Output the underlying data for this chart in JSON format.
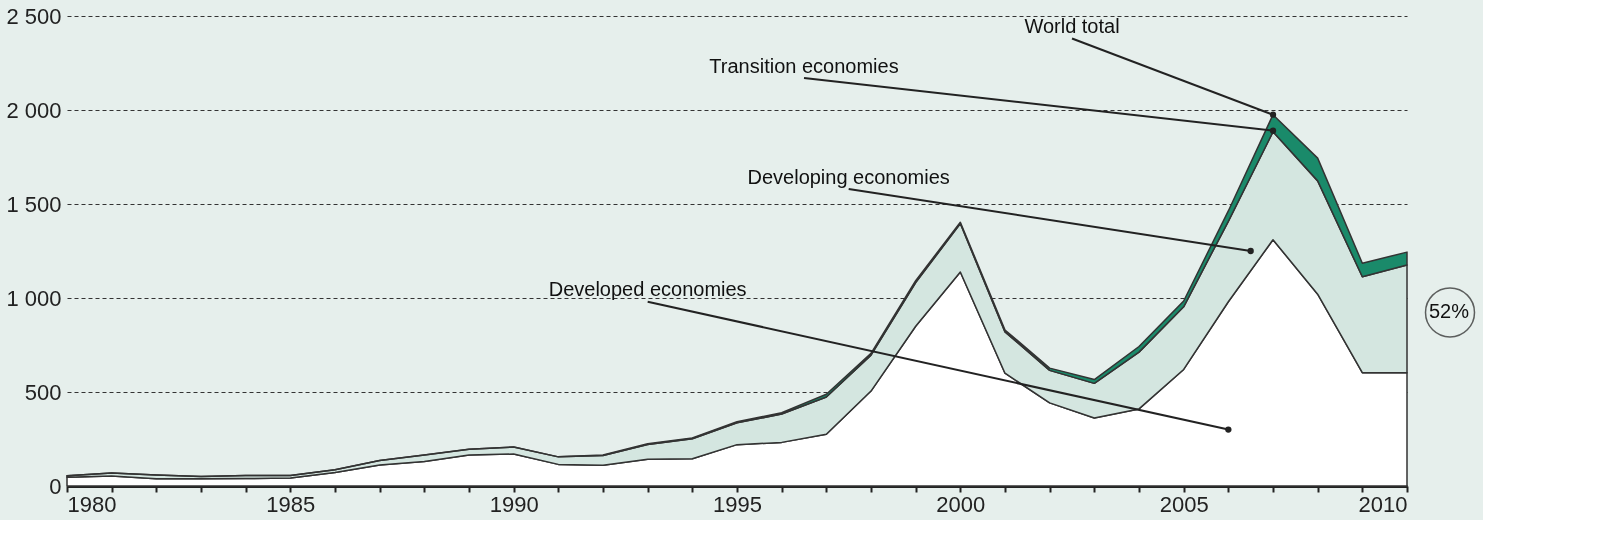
{
  "chart_data": {
    "type": "area",
    "stacked": true,
    "x": [
      1980,
      1981,
      1982,
      1983,
      1984,
      1985,
      1986,
      1987,
      1988,
      1989,
      1990,
      1991,
      1992,
      1993,
      1994,
      1995,
      1996,
      1997,
      1998,
      1999,
      2000,
      2001,
      2002,
      2003,
      2004,
      2005,
      2006,
      2007,
      2008,
      2009,
      2010
    ],
    "series": [
      {
        "color": "#ffffff",
        "values": [
          47,
          53,
          38,
          38,
          40,
          42,
          72,
          112,
          130,
          165,
          170,
          115,
          110,
          142,
          145,
          220,
          232,
          275,
          505,
          850,
          1138,
          600,
          442,
          362,
          410,
          620,
          980,
          1310,
          1020,
          603,
          602
        ]
      },
      {
        "color": "#d4e6e0",
        "values": [
          7,
          16,
          20,
          12,
          16,
          14,
          15,
          24,
          35,
          30,
          37,
          40,
          52,
          79,
          106,
          116,
          151,
          198,
          191,
          232,
          258,
          220,
          173,
          184,
          302,
          333,
          428,
          574,
          603,
          510,
          574
        ]
      },
      {
        "color": "#1a8a6a",
        "values": [
          0,
          0,
          0,
          0,
          0,
          0,
          0,
          0,
          0,
          0,
          0,
          0,
          3,
          4,
          5,
          6,
          7,
          15,
          10,
          10,
          7,
          10,
          12,
          20,
          30,
          31,
          55,
          91,
          121,
          72,
          68
        ]
      }
    ],
    "xlim": [
      1980,
      2010
    ],
    "ylim": [
      0,
      2500
    ],
    "xticks": [
      1980,
      {
        "value": 1981,
        "label": null
      },
      {
        "value": 1982,
        "label": null
      },
      {
        "value": 1983,
        "label": null
      },
      {
        "value": 1984,
        "label": null
      },
      1985,
      {
        "value": 1986,
        "label": null
      },
      {
        "value": 1987,
        "label": null
      },
      {
        "value": 1988,
        "label": null
      },
      {
        "value": 1989,
        "label": null
      },
      1990,
      {
        "value": 1991,
        "label": null
      },
      {
        "value": 1992,
        "label": null
      },
      {
        "value": 1993,
        "label": null
      },
      {
        "value": 1994,
        "label": null
      },
      1995,
      {
        "value": 1996,
        "label": null
      },
      {
        "value": 1997,
        "label": null
      },
      {
        "value": 1998,
        "label": null
      },
      {
        "value": 1999,
        "label": null
      },
      2000,
      {
        "value": 2001,
        "label": null
      },
      {
        "value": 2002,
        "label": null
      },
      {
        "value": 2003,
        "label": null
      },
      {
        "value": 2004,
        "label": null
      },
      2005,
      {
        "value": 2006,
        "label": null
      },
      {
        "value": 2007,
        "label": null
      },
      {
        "value": 2008,
        "label": null
      },
      {
        "value": 2009,
        "label": null
      },
      2010
    ],
    "yticks": [
      0,
      {
        "value": 500,
        "label": "500"
      },
      {
        "value": 1000,
        "label": "1 000"
      },
      {
        "value": 1500,
        "label": "1 500"
      },
      {
        "value": 2000,
        "label": "2 000"
      },
      {
        "value": 2500,
        "label": "2 500"
      }
    ],
    "grid": "y",
    "annotations": [
      {
        "text": "World total",
        "x": 2007,
        "y": 1975
      },
      {
        "text": "Transition economies",
        "x": 2007,
        "y": 1890
      },
      {
        "text": "Developing economies",
        "x": 2006.5,
        "y": 1250
      },
      {
        "text": "Developed economies",
        "x": 2006,
        "y": 300
      },
      "52%"
    ]
  }
}
